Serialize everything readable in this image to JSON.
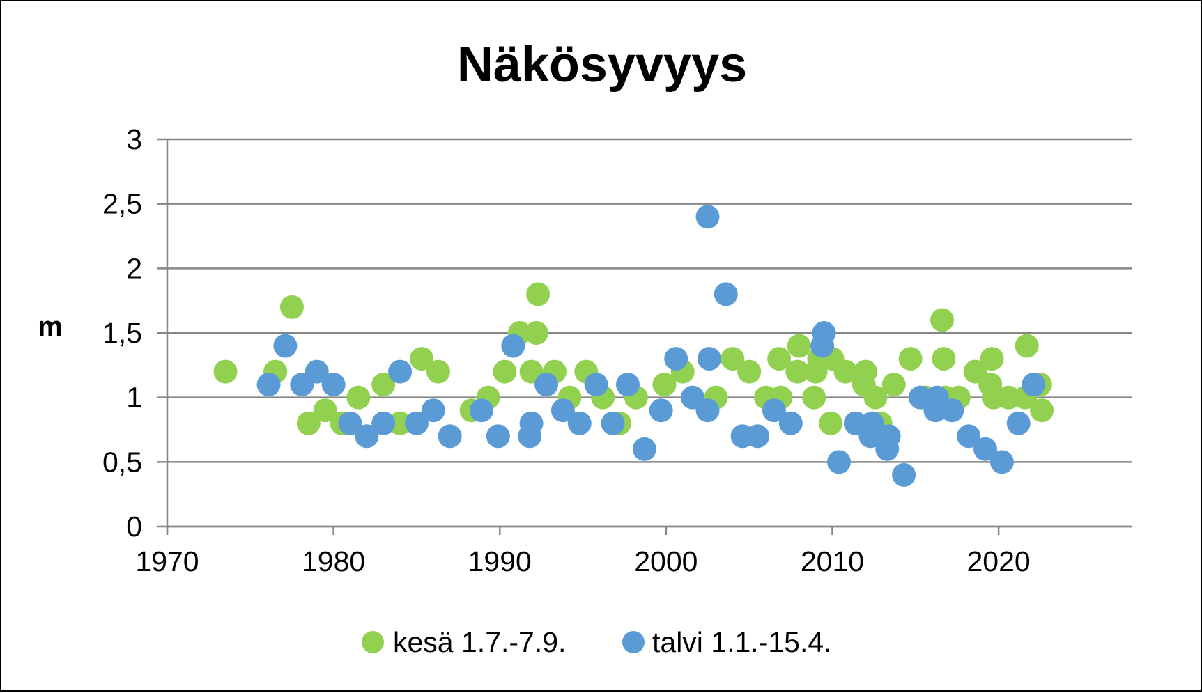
{
  "chart_data": {
    "type": "scatter",
    "title": "Näkösyvyys",
    "xlabel": "",
    "ylabel": "m",
    "xlim": [
      1970,
      2028
    ],
    "ylim": [
      0,
      3
    ],
    "x_ticks": [
      1970,
      1980,
      1990,
      2000,
      2010,
      2020
    ],
    "x_tick_labels": [
      "1970",
      "1980",
      "1990",
      "2000",
      "2010",
      "2020"
    ],
    "y_ticks": [
      0,
      0.5,
      1,
      1.5,
      2,
      2.5,
      3
    ],
    "y_tick_labels": [
      "0",
      "0,5",
      "1",
      "1,5",
      "2",
      "2,5",
      "3"
    ],
    "grid": "horizontal",
    "legend_position": "bottom",
    "series": [
      {
        "name": "kesä 1.7.-7.9.",
        "color": "#92d050",
        "points": [
          [
            1973.5,
            1.2
          ],
          [
            1976.5,
            1.2
          ],
          [
            1977.5,
            1.7
          ],
          [
            1978.5,
            0.8
          ],
          [
            1979.5,
            0.9
          ],
          [
            1980.5,
            0.8
          ],
          [
            1981.5,
            1.0
          ],
          [
            1983.0,
            1.1
          ],
          [
            1984.0,
            0.8
          ],
          [
            1985.3,
            1.3
          ],
          [
            1986.3,
            1.2
          ],
          [
            1988.3,
            0.9
          ],
          [
            1989.3,
            1.0
          ],
          [
            1990.3,
            1.2
          ],
          [
            1991.2,
            1.5
          ],
          [
            1991.9,
            1.2
          ],
          [
            1992.2,
            1.5
          ],
          [
            1992.3,
            1.8
          ],
          [
            1993.3,
            1.2
          ],
          [
            1994.2,
            1.0
          ],
          [
            1995.2,
            1.2
          ],
          [
            1996.2,
            1.0
          ],
          [
            1997.2,
            0.8
          ],
          [
            1998.2,
            1.0
          ],
          [
            1999.9,
            1.1
          ],
          [
            2001.0,
            1.2
          ],
          [
            2003.0,
            1.0
          ],
          [
            2004.0,
            1.3
          ],
          [
            2005.0,
            1.2
          ],
          [
            2006.0,
            1.0
          ],
          [
            2006.8,
            1.3
          ],
          [
            2006.9,
            1.0
          ],
          [
            2007.9,
            1.2
          ],
          [
            2008.0,
            1.4
          ],
          [
            2008.9,
            1.0
          ],
          [
            2009.0,
            1.2
          ],
          [
            2009.2,
            1.3
          ],
          [
            2009.9,
            0.8
          ],
          [
            2010.0,
            1.3
          ],
          [
            2010.8,
            1.2
          ],
          [
            2011.9,
            1.1
          ],
          [
            2012.0,
            1.2
          ],
          [
            2012.6,
            1.0
          ],
          [
            2012.9,
            0.8
          ],
          [
            2013.7,
            1.1
          ],
          [
            2014.7,
            1.3
          ],
          [
            2015.6,
            1.0
          ],
          [
            2016.6,
            1.6
          ],
          [
            2016.7,
            1.3
          ],
          [
            2016.8,
            1.0
          ],
          [
            2017.6,
            1.0
          ],
          [
            2018.6,
            1.2
          ],
          [
            2019.5,
            1.1
          ],
          [
            2019.6,
            1.3
          ],
          [
            2019.7,
            1.0
          ],
          [
            2020.6,
            1.0
          ],
          [
            2021.6,
            1.0
          ],
          [
            2021.7,
            1.4
          ],
          [
            2022.5,
            1.1
          ],
          [
            2022.6,
            0.9
          ]
        ]
      },
      {
        "name": "talvi 1.1.-15.4.",
        "color": "#5b9bd5",
        "points": [
          [
            1976.1,
            1.1
          ],
          [
            1977.1,
            1.4
          ],
          [
            1978.1,
            1.1
          ],
          [
            1979.0,
            1.2
          ],
          [
            1980.0,
            1.1
          ],
          [
            1981.0,
            0.8
          ],
          [
            1982.0,
            0.7
          ],
          [
            1983.0,
            0.8
          ],
          [
            1984.0,
            1.2
          ],
          [
            1985.0,
            0.8
          ],
          [
            1986.0,
            0.9
          ],
          [
            1987.0,
            0.7
          ],
          [
            1988.9,
            0.9
          ],
          [
            1989.9,
            0.7
          ],
          [
            1990.8,
            1.4
          ],
          [
            1991.8,
            0.7
          ],
          [
            1991.9,
            0.8
          ],
          [
            1992.8,
            1.1
          ],
          [
            1993.8,
            0.9
          ],
          [
            1994.8,
            0.8
          ],
          [
            1995.8,
            1.1
          ],
          [
            1996.8,
            0.8
          ],
          [
            1997.7,
            1.1
          ],
          [
            1998.7,
            0.6
          ],
          [
            1999.7,
            0.9
          ],
          [
            2000.6,
            1.3
          ],
          [
            2001.6,
            1.0
          ],
          [
            2002.5,
            0.9
          ],
          [
            2002.5,
            2.4
          ],
          [
            2002.6,
            1.3
          ],
          [
            2003.6,
            1.8
          ],
          [
            2004.6,
            0.7
          ],
          [
            2005.5,
            0.7
          ],
          [
            2006.5,
            0.9
          ],
          [
            2007.5,
            0.8
          ],
          [
            2009.4,
            1.4
          ],
          [
            2009.5,
            1.5
          ],
          [
            2010.4,
            0.5
          ],
          [
            2011.4,
            0.8
          ],
          [
            2012.3,
            0.7
          ],
          [
            2012.4,
            0.8
          ],
          [
            2013.3,
            0.6
          ],
          [
            2013.4,
            0.7
          ],
          [
            2014.3,
            0.4
          ],
          [
            2015.3,
            1.0
          ],
          [
            2016.2,
            0.9
          ],
          [
            2016.3,
            1.0
          ],
          [
            2017.2,
            0.9
          ],
          [
            2018.2,
            0.7
          ],
          [
            2019.2,
            0.6
          ],
          [
            2020.2,
            0.5
          ],
          [
            2021.2,
            0.8
          ],
          [
            2022.1,
            1.1
          ]
        ]
      }
    ]
  }
}
